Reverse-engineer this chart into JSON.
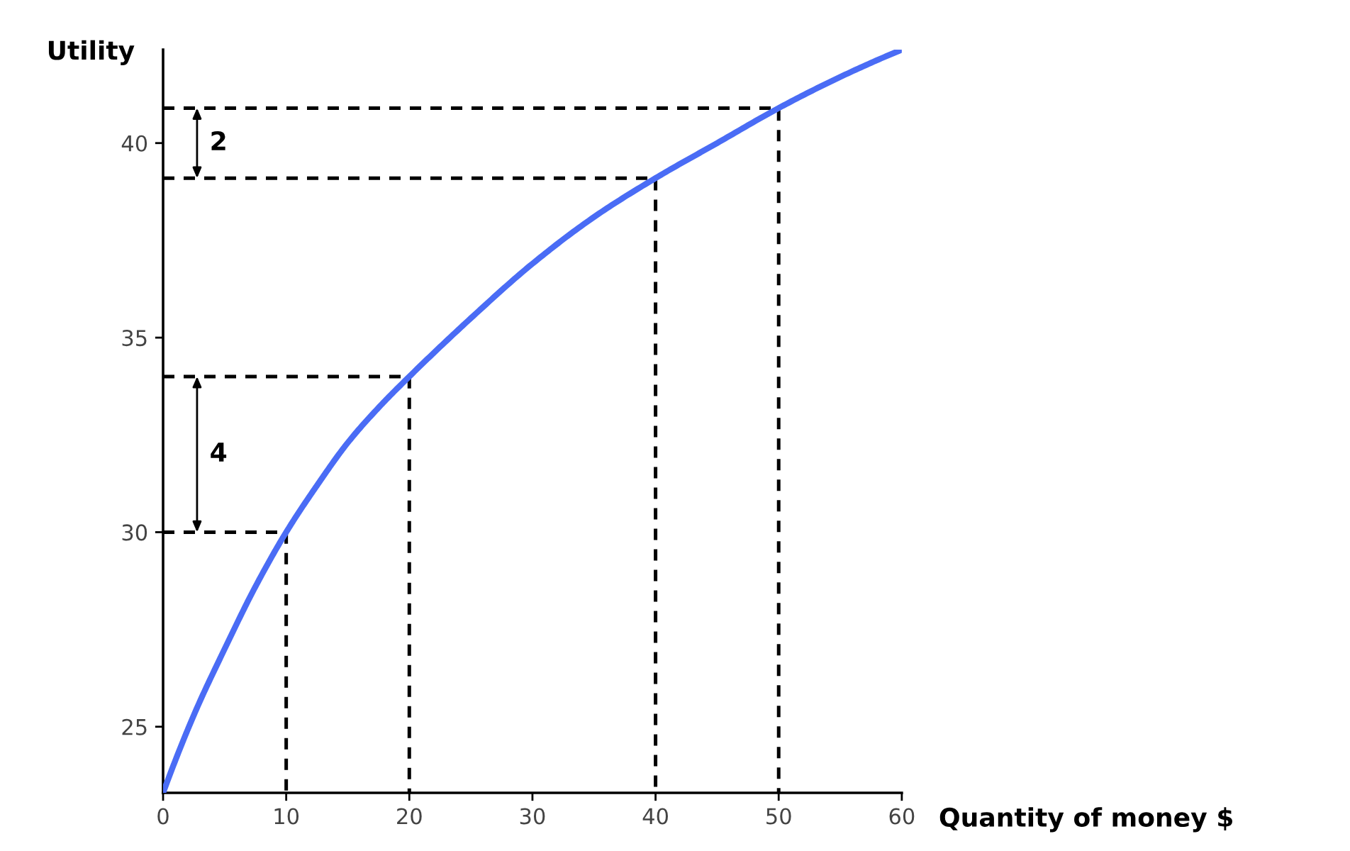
{
  "chart_data": {
    "type": "line",
    "xlabel": "Quantity of money $",
    "ylabel": "Utility",
    "xlim": [
      0,
      60
    ],
    "xticks": [
      0,
      10,
      20,
      30,
      40,
      50,
      60
    ],
    "ylim": [
      23.3,
      42.4
    ],
    "yticks": [
      25,
      30,
      35,
      40
    ],
    "series": [
      {
        "color": "#4a6cf5",
        "line_style": "solid",
        "x": [
          0,
          2.5,
          5,
          7.5,
          10,
          12.5,
          15,
          17.5,
          20,
          25,
          30,
          35,
          40,
          45,
          50,
          55,
          60
        ],
        "values": [
          23.3,
          25.3,
          27.0,
          28.6,
          30,
          31.2,
          32.3,
          33.2,
          34,
          35.5,
          36.9,
          38.1,
          39.1,
          40.0,
          40.9,
          41.7,
          42.4
        ]
      },
      {
        "color": "#000000",
        "line_style": "dashed",
        "x": [
          0,
          50,
          50
        ],
        "values": [
          40.9,
          40.9,
          23.3
        ]
      },
      {
        "color": "#000000",
        "line_style": "dashed",
        "x": [
          0,
          40,
          40
        ],
        "values": [
          39.1,
          39.1,
          23.3
        ]
      },
      {
        "color": "#000000",
        "line_style": "dashed",
        "x": [
          0,
          20,
          20
        ],
        "values": [
          34,
          34,
          23.3
        ]
      },
      {
        "color": "#000000",
        "line_style": "dashed",
        "x": [
          0,
          10,
          10
        ],
        "values": [
          30,
          30,
          23.3
        ]
      }
    ],
    "annotations": [
      "2",
      "4"
    ]
  }
}
